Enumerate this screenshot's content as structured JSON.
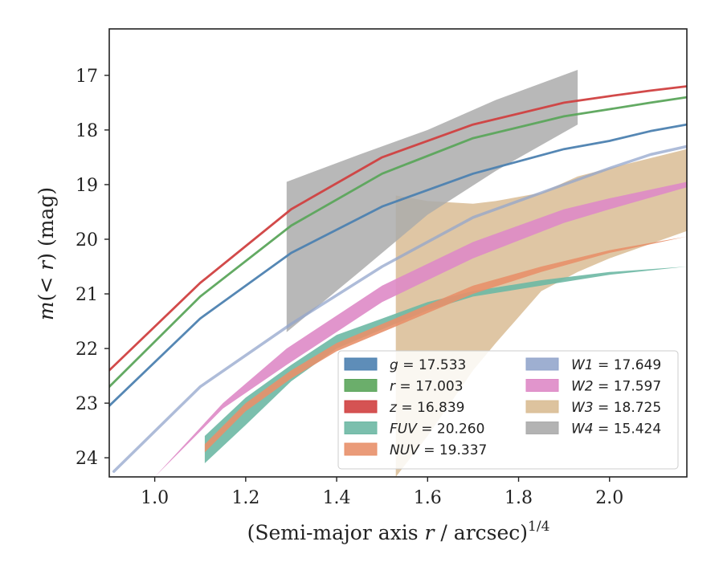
{
  "chart_data": {
    "type": "line",
    "xlabel": "(Semi-major axis r / arcsec)^{1/4}",
    "xlabel_parts": {
      "pre": "(Semi-major axis ",
      "var": "r",
      "post": " / arcsec)",
      "sup": "1/4"
    },
    "ylabel": "m(<r) (mag)",
    "ylabel_parts": {
      "var": "m",
      "open": "(",
      "lt": "<",
      "rvar": "r",
      "close": ")",
      "unit": " (mag)"
    },
    "xlim": [
      0.9,
      2.17
    ],
    "ylim": [
      24.35,
      16.15
    ],
    "y_inverted": true,
    "x_ticks": [
      "1.0",
      "1.2",
      "1.4",
      "1.6",
      "1.8",
      "2.0"
    ],
    "y_ticks": [
      "17",
      "18",
      "19",
      "20",
      "21",
      "22",
      "23",
      "24"
    ],
    "grid": false,
    "legend_position": "lower-right",
    "series": [
      {
        "key": "g",
        "name": "g = 17.533",
        "label_var": "g",
        "label_val": "17.533",
        "color": "#4c81b0",
        "kind": "line",
        "x": [
          0.9,
          1.1,
          1.3,
          1.5,
          1.7,
          1.9,
          2.0,
          2.09,
          2.17
        ],
        "y": [
          23.05,
          21.45,
          20.25,
          19.4,
          18.8,
          18.35,
          18.2,
          18.02,
          17.9
        ]
      },
      {
        "key": "r",
        "name": "r = 17.003",
        "label_var": "r",
        "label_val": "17.003",
        "color": "#5ba55b",
        "kind": "line",
        "x": [
          0.9,
          1.1,
          1.3,
          1.5,
          1.7,
          1.9,
          2.0,
          2.09,
          2.17
        ],
        "y": [
          22.7,
          21.05,
          19.75,
          18.8,
          18.15,
          17.75,
          17.62,
          17.5,
          17.4
        ]
      },
      {
        "key": "z",
        "name": "z = 16.839",
        "label_var": "z",
        "label_val": "16.839",
        "color": "#d04040",
        "kind": "line",
        "x": [
          0.9,
          1.1,
          1.3,
          1.5,
          1.7,
          1.9,
          2.0,
          2.09,
          2.17
        ],
        "y": [
          22.4,
          20.8,
          19.45,
          18.5,
          17.9,
          17.5,
          17.38,
          17.28,
          17.2
        ]
      },
      {
        "key": "FUV",
        "name": "FUV = 20.260",
        "label_var": "FUV",
        "label_val": "20.260",
        "color": "#6db8a4",
        "kind": "band",
        "x": [
          1.11,
          1.2,
          1.3,
          1.4,
          1.5,
          1.6,
          1.7,
          1.85,
          2.0,
          2.17
        ],
        "y_low": [
          24.1,
          23.4,
          22.6,
          22.0,
          21.65,
          21.3,
          21.05,
          20.85,
          20.65,
          20.5
        ],
        "y_high": [
          23.6,
          22.9,
          22.3,
          21.75,
          21.45,
          21.15,
          20.95,
          20.75,
          20.6,
          20.5
        ]
      },
      {
        "key": "NUV",
        "name": "NUV = 19.337",
        "label_var": "NUV",
        "label_val": "19.337",
        "color": "#e8906a",
        "kind": "band",
        "x": [
          1.11,
          1.2,
          1.3,
          1.4,
          1.5,
          1.6,
          1.7,
          1.85,
          2.0,
          2.17
        ],
        "y_low": [
          23.9,
          23.15,
          22.55,
          22.05,
          21.7,
          21.35,
          21.0,
          20.6,
          20.25,
          19.95
        ],
        "y_high": [
          23.75,
          23.0,
          22.4,
          21.9,
          21.55,
          21.2,
          20.85,
          20.5,
          20.2,
          19.95
        ]
      },
      {
        "key": "W1",
        "name": "W1 = 17.649",
        "label_var": "W1",
        "label_val": "17.649",
        "color": "#93a6cc",
        "kind": "line",
        "x": [
          0.91,
          1.1,
          1.3,
          1.5,
          1.7,
          1.9,
          2.0,
          2.09,
          2.17
        ],
        "y": [
          24.25,
          22.7,
          21.55,
          20.5,
          19.6,
          19.0,
          18.7,
          18.45,
          18.3
        ]
      },
      {
        "key": "W2",
        "name": "W2 = 17.597",
        "label_var": "W2",
        "label_val": "17.597",
        "color": "#de8ac6",
        "kind": "band",
        "x": [
          1.0,
          1.15,
          1.29,
          1.5,
          1.7,
          1.9,
          2.0,
          2.17
        ],
        "y_low": [
          24.35,
          23.1,
          22.3,
          21.15,
          20.35,
          19.7,
          19.45,
          19.05
        ],
        "y_high": [
          24.35,
          23.0,
          22.0,
          20.85,
          20.05,
          19.45,
          19.25,
          18.95
        ]
      },
      {
        "key": "W3",
        "name": "W3 = 18.725",
        "label_var": "W3",
        "label_val": "18.725",
        "color": "#d9bc94",
        "kind": "band",
        "x": [
          1.53,
          1.6,
          1.7,
          1.75,
          1.85,
          1.93,
          2.0,
          2.17
        ],
        "y_low": [
          24.35,
          23.6,
          22.4,
          21.9,
          20.95,
          20.6,
          20.35,
          19.85
        ],
        "y_high": [
          19.2,
          19.3,
          19.35,
          19.3,
          19.15,
          18.85,
          18.7,
          18.35
        ]
      },
      {
        "key": "W4",
        "name": "W4 = 15.424",
        "label_var": "W4",
        "label_val": "15.424",
        "color": "#ababab",
        "kind": "band",
        "x": [
          1.29,
          1.45,
          1.6,
          1.75,
          1.93
        ],
        "y_low": [
          21.7,
          20.6,
          19.55,
          18.75,
          17.9
        ],
        "y_high": [
          18.95,
          18.45,
          18.0,
          17.45,
          16.9
        ]
      }
    ]
  }
}
